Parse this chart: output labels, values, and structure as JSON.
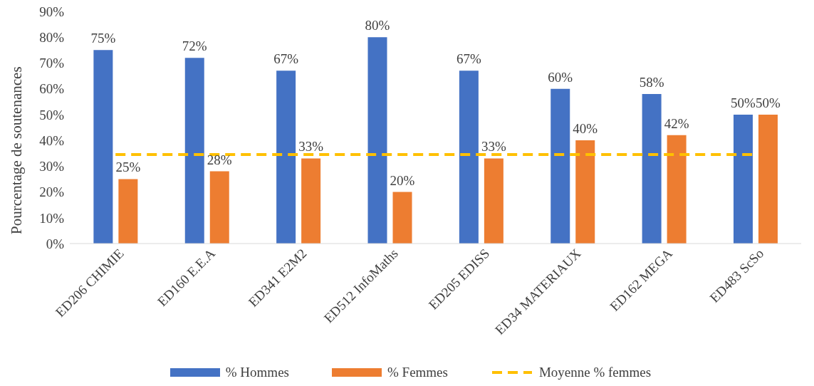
{
  "chart_data": {
    "type": "bar",
    "ylabel": "Pourcentage de soutenances",
    "categories": [
      "ED206 CHIMIE",
      "ED160 E.E.A",
      "ED341 E2M2",
      "ED512 InfoMaths",
      "ED205 EDISS",
      "ED34 MATERIAUX",
      "ED162 MEGA",
      "ED483 ScSo"
    ],
    "series": [
      {
        "name": "% Hommes",
        "color": "#4472c4",
        "values": [
          75,
          72,
          67,
          80,
          67,
          60,
          58,
          50
        ],
        "value_labels": [
          "75%",
          "72%",
          "67%",
          "80%",
          "67%",
          "60%",
          "58%",
          "50%"
        ]
      },
      {
        "name": "% Femmes",
        "color": "#ed7d31",
        "values": [
          25,
          28,
          33,
          20,
          33,
          40,
          42,
          50
        ],
        "value_labels": [
          "25%",
          "28%",
          "33%",
          "20%",
          "33%",
          "40%",
          "42%",
          "50%"
        ]
      },
      {
        "name": "Moyenne % femmes",
        "type": "line",
        "color": "#ffc000",
        "line_style": "dashed",
        "marker": "none",
        "values": [
          34.5,
          34.5,
          34.5,
          34.5,
          34.5,
          34.5,
          34.5,
          34.5
        ]
      }
    ],
    "ylim": [
      0,
      90
    ],
    "yticks": [
      {
        "value": 0,
        "label": "0%"
      },
      {
        "value": 10,
        "label": "10%"
      },
      {
        "value": 20,
        "label": "20%"
      },
      {
        "value": 30,
        "label": "30%"
      },
      {
        "value": 40,
        "label": "40%"
      },
      {
        "value": 50,
        "label": "50%"
      },
      {
        "value": 60,
        "label": "60%"
      },
      {
        "value": 70,
        "label": "70%"
      },
      {
        "value": 80,
        "label": "80%"
      },
      {
        "value": 90,
        "label": "90%"
      }
    ],
    "grid": false,
    "legend": "bottom"
  }
}
